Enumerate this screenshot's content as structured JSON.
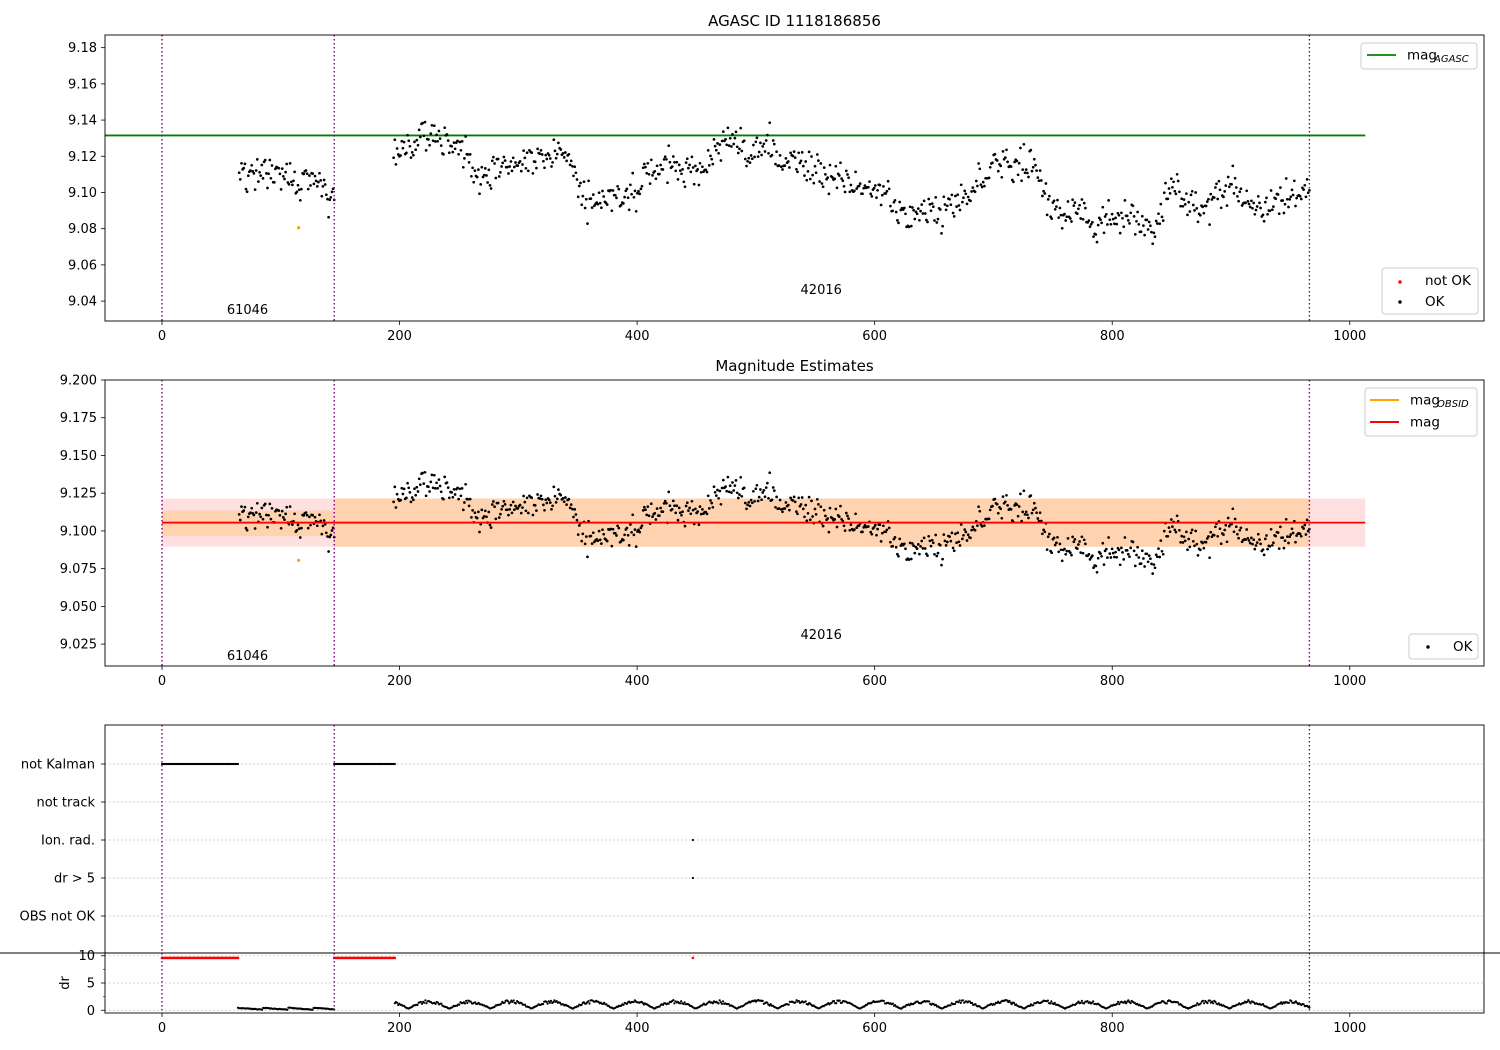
{
  "figure": {
    "background": "#ffffff"
  },
  "chart_data": [
    {
      "type": "scatter",
      "title": "AGASC ID 1118186856",
      "xlim": [
        -48,
        1113
      ],
      "ylim": [
        9.029,
        9.187
      ],
      "xticks": [
        0,
        200,
        400,
        600,
        800,
        1000
      ],
      "xtick_labels": [
        "0",
        "200",
        "400",
        "600",
        "800",
        "1000"
      ],
      "yticks": [
        9.04,
        9.06,
        9.08,
        9.1,
        9.12,
        9.14,
        9.16,
        9.18
      ],
      "ytick_labels": [
        "9.04",
        "9.06",
        "9.08",
        "9.10",
        "9.12",
        "9.14",
        "9.16",
        "9.18"
      ],
      "obsid_boundaries": [
        0,
        145,
        966
      ],
      "obsid_labels": [
        {
          "text": "61046",
          "x": 72,
          "y": 9.035
        },
        {
          "text": "42016",
          "x": 555,
          "y": 9.046
        }
      ],
      "agasc_mag": {
        "value": 9.1315,
        "x": [
          -48,
          1013
        ],
        "color": "#008000"
      },
      "not_ok_points": [
        {
          "x": 115,
          "y": 9.0805
        }
      ],
      "legend_top": [
        {
          "label": "mag",
          "sub": "AGASC",
          "color": "#008000"
        }
      ],
      "legend_bottom": [
        {
          "label": "not OK",
          "color": "#ff0000"
        },
        {
          "label": "OK",
          "color": "#000000"
        }
      ],
      "ok_segments": [
        {
          "x0": 65,
          "x1": 145,
          "n": 85,
          "knots": [
            [
              65,
              9.11
            ],
            [
              90,
              9.108
            ],
            [
              115,
              9.107
            ],
            [
              135,
              9.1
            ],
            [
              145,
              9.093
            ]
          ],
          "noise": 0.009
        },
        {
          "x0": 195,
          "x1": 966,
          "n": 790,
          "knots": [
            [
              195,
              9.122
            ],
            [
              225,
              9.128
            ],
            [
              260,
              9.117
            ],
            [
              300,
              9.115
            ],
            [
              340,
              9.123
            ],
            [
              360,
              9.095
            ],
            [
              385,
              9.102
            ],
            [
              410,
              9.113
            ],
            [
              440,
              9.115
            ],
            [
              470,
              9.12
            ],
            [
              510,
              9.124
            ],
            [
              545,
              9.122
            ],
            [
              575,
              9.103
            ],
            [
              600,
              9.098
            ],
            [
              640,
              9.092
            ],
            [
              670,
              9.091
            ],
            [
              700,
              9.113
            ],
            [
              735,
              9.112
            ],
            [
              745,
              9.087
            ],
            [
              780,
              9.082
            ],
            [
              810,
              9.085
            ],
            [
              830,
              9.078
            ],
            [
              850,
              9.103
            ],
            [
              875,
              9.09
            ],
            [
              900,
              9.1
            ],
            [
              935,
              9.093
            ],
            [
              966,
              9.095
            ]
          ],
          "noise": 0.01
        }
      ]
    },
    {
      "type": "scatter",
      "title": "Magnitude Estimates",
      "xlim": [
        -48,
        1113
      ],
      "ylim": [
        9.0105,
        9.2
      ],
      "xticks": [
        0,
        200,
        400,
        600,
        800,
        1000
      ],
      "xtick_labels": [
        "0",
        "200",
        "400",
        "600",
        "800",
        "1000"
      ],
      "yticks": [
        9.025,
        9.05,
        9.075,
        9.1,
        9.125,
        9.15,
        9.175,
        9.2
      ],
      "ytick_labels": [
        "9.025",
        "9.050",
        "9.075",
        "9.100",
        "9.125",
        "9.150",
        "9.175",
        "9.200"
      ],
      "obsid_boundaries": [
        0,
        145,
        966
      ],
      "obsid_labels": [
        {
          "text": "61046",
          "x": 72,
          "y": 9.017
        },
        {
          "text": "42016",
          "x": 555,
          "y": 9.031
        }
      ],
      "mag": {
        "value": 9.1055,
        "band": [
          9.0895,
          9.1215
        ],
        "x": [
          0,
          1013
        ],
        "color": "#ff0000"
      },
      "mag_obsid": [
        {
          "x": [
            0,
            145
          ],
          "value": 9.1055,
          "band": [
            9.0965,
            9.1135
          ],
          "color": "#ffa500"
        },
        {
          "x": [
            145,
            966
          ],
          "value": 9.1055,
          "band": [
            9.0895,
            9.1215
          ],
          "color": "#ffa500"
        }
      ],
      "not_ok_points": [
        {
          "x": 115,
          "y": 9.0805
        }
      ],
      "legend_top": [
        {
          "label": "mag",
          "sub": "OBSID",
          "color": "#ffa500"
        },
        {
          "label": "mag",
          "sub": "",
          "color": "#ff0000"
        }
      ],
      "legend_bottom": [
        {
          "label": "OK",
          "color": "#000000"
        }
      ]
    },
    {
      "type": "scatter",
      "title": "",
      "xlim": [
        -48,
        1113
      ],
      "xticks": [
        0,
        200,
        400,
        600,
        800,
        1000
      ],
      "xtick_labels": [
        "0",
        "200",
        "400",
        "600",
        "800",
        "1000"
      ],
      "obsid_boundaries": [
        0,
        145,
        966
      ],
      "flag_rows": [
        "not Kalman",
        "not track",
        "Ion. rad.",
        "dr > 5",
        "OBS not OK"
      ],
      "flag_points": [
        {
          "row": 0,
          "x0": 0,
          "x1": 64,
          "n": 65
        },
        {
          "row": 0,
          "x0": 145,
          "x1": 196,
          "n": 52
        },
        {
          "row": 2,
          "x0": 447,
          "x1": 447,
          "n": 1
        },
        {
          "row": 3,
          "x0": 447,
          "x1": 447,
          "n": 1
        }
      ],
      "dr": {
        "ylabel": "dr",
        "ylim": [
          -0.5,
          10.5
        ],
        "yticks": [
          0,
          5,
          10
        ],
        "ytick_labels": [
          "0",
          "5",
          "10"
        ],
        "red_ranges": [
          [
            0,
            64
          ],
          [
            145,
            196
          ],
          [
            447,
            447
          ]
        ],
        "black_ranges": [
          [
            64,
            145
          ],
          [
            196,
            966
          ]
        ]
      }
    }
  ]
}
